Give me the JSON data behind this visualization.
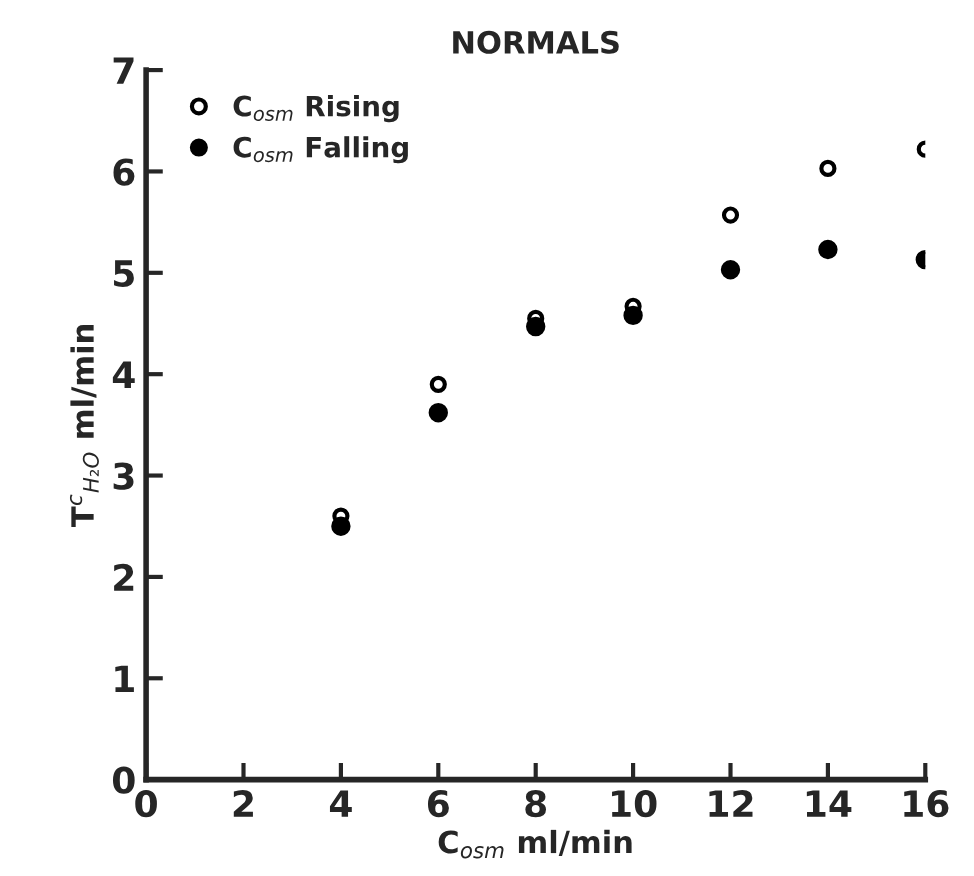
{
  "chart_data": {
    "type": "scatter",
    "title": "NORMALS",
    "xlabel": "C$_{osm}$ ml/min",
    "ylabel": "T$^{c}$$_{H₂O}$ ml/min",
    "x": [
      4,
      6,
      8,
      10,
      12,
      14,
      16
    ],
    "series": [
      {
        "name": "C$_{osm}$ Rising",
        "color": "#000000",
        "marker": "open circle",
        "values": [
          2.6,
          3.9,
          4.55,
          4.67,
          5.57,
          6.03,
          6.22
        ]
      },
      {
        "name": "C$_{osm}$ Falling",
        "color": "#000000",
        "marker": "circle",
        "values": [
          2.5,
          3.62,
          4.47,
          4.58,
          5.03,
          5.23,
          5.13
        ]
      }
    ],
    "xlim": [
      0,
      16
    ],
    "ylim": [
      0,
      7
    ],
    "xticks": [
      0,
      2,
      4,
      6,
      8,
      10,
      12,
      14,
      16
    ],
    "yticks": [
      0,
      1,
      2,
      3,
      4,
      5,
      6,
      7
    ],
    "grid": false,
    "legend": "top left"
  }
}
